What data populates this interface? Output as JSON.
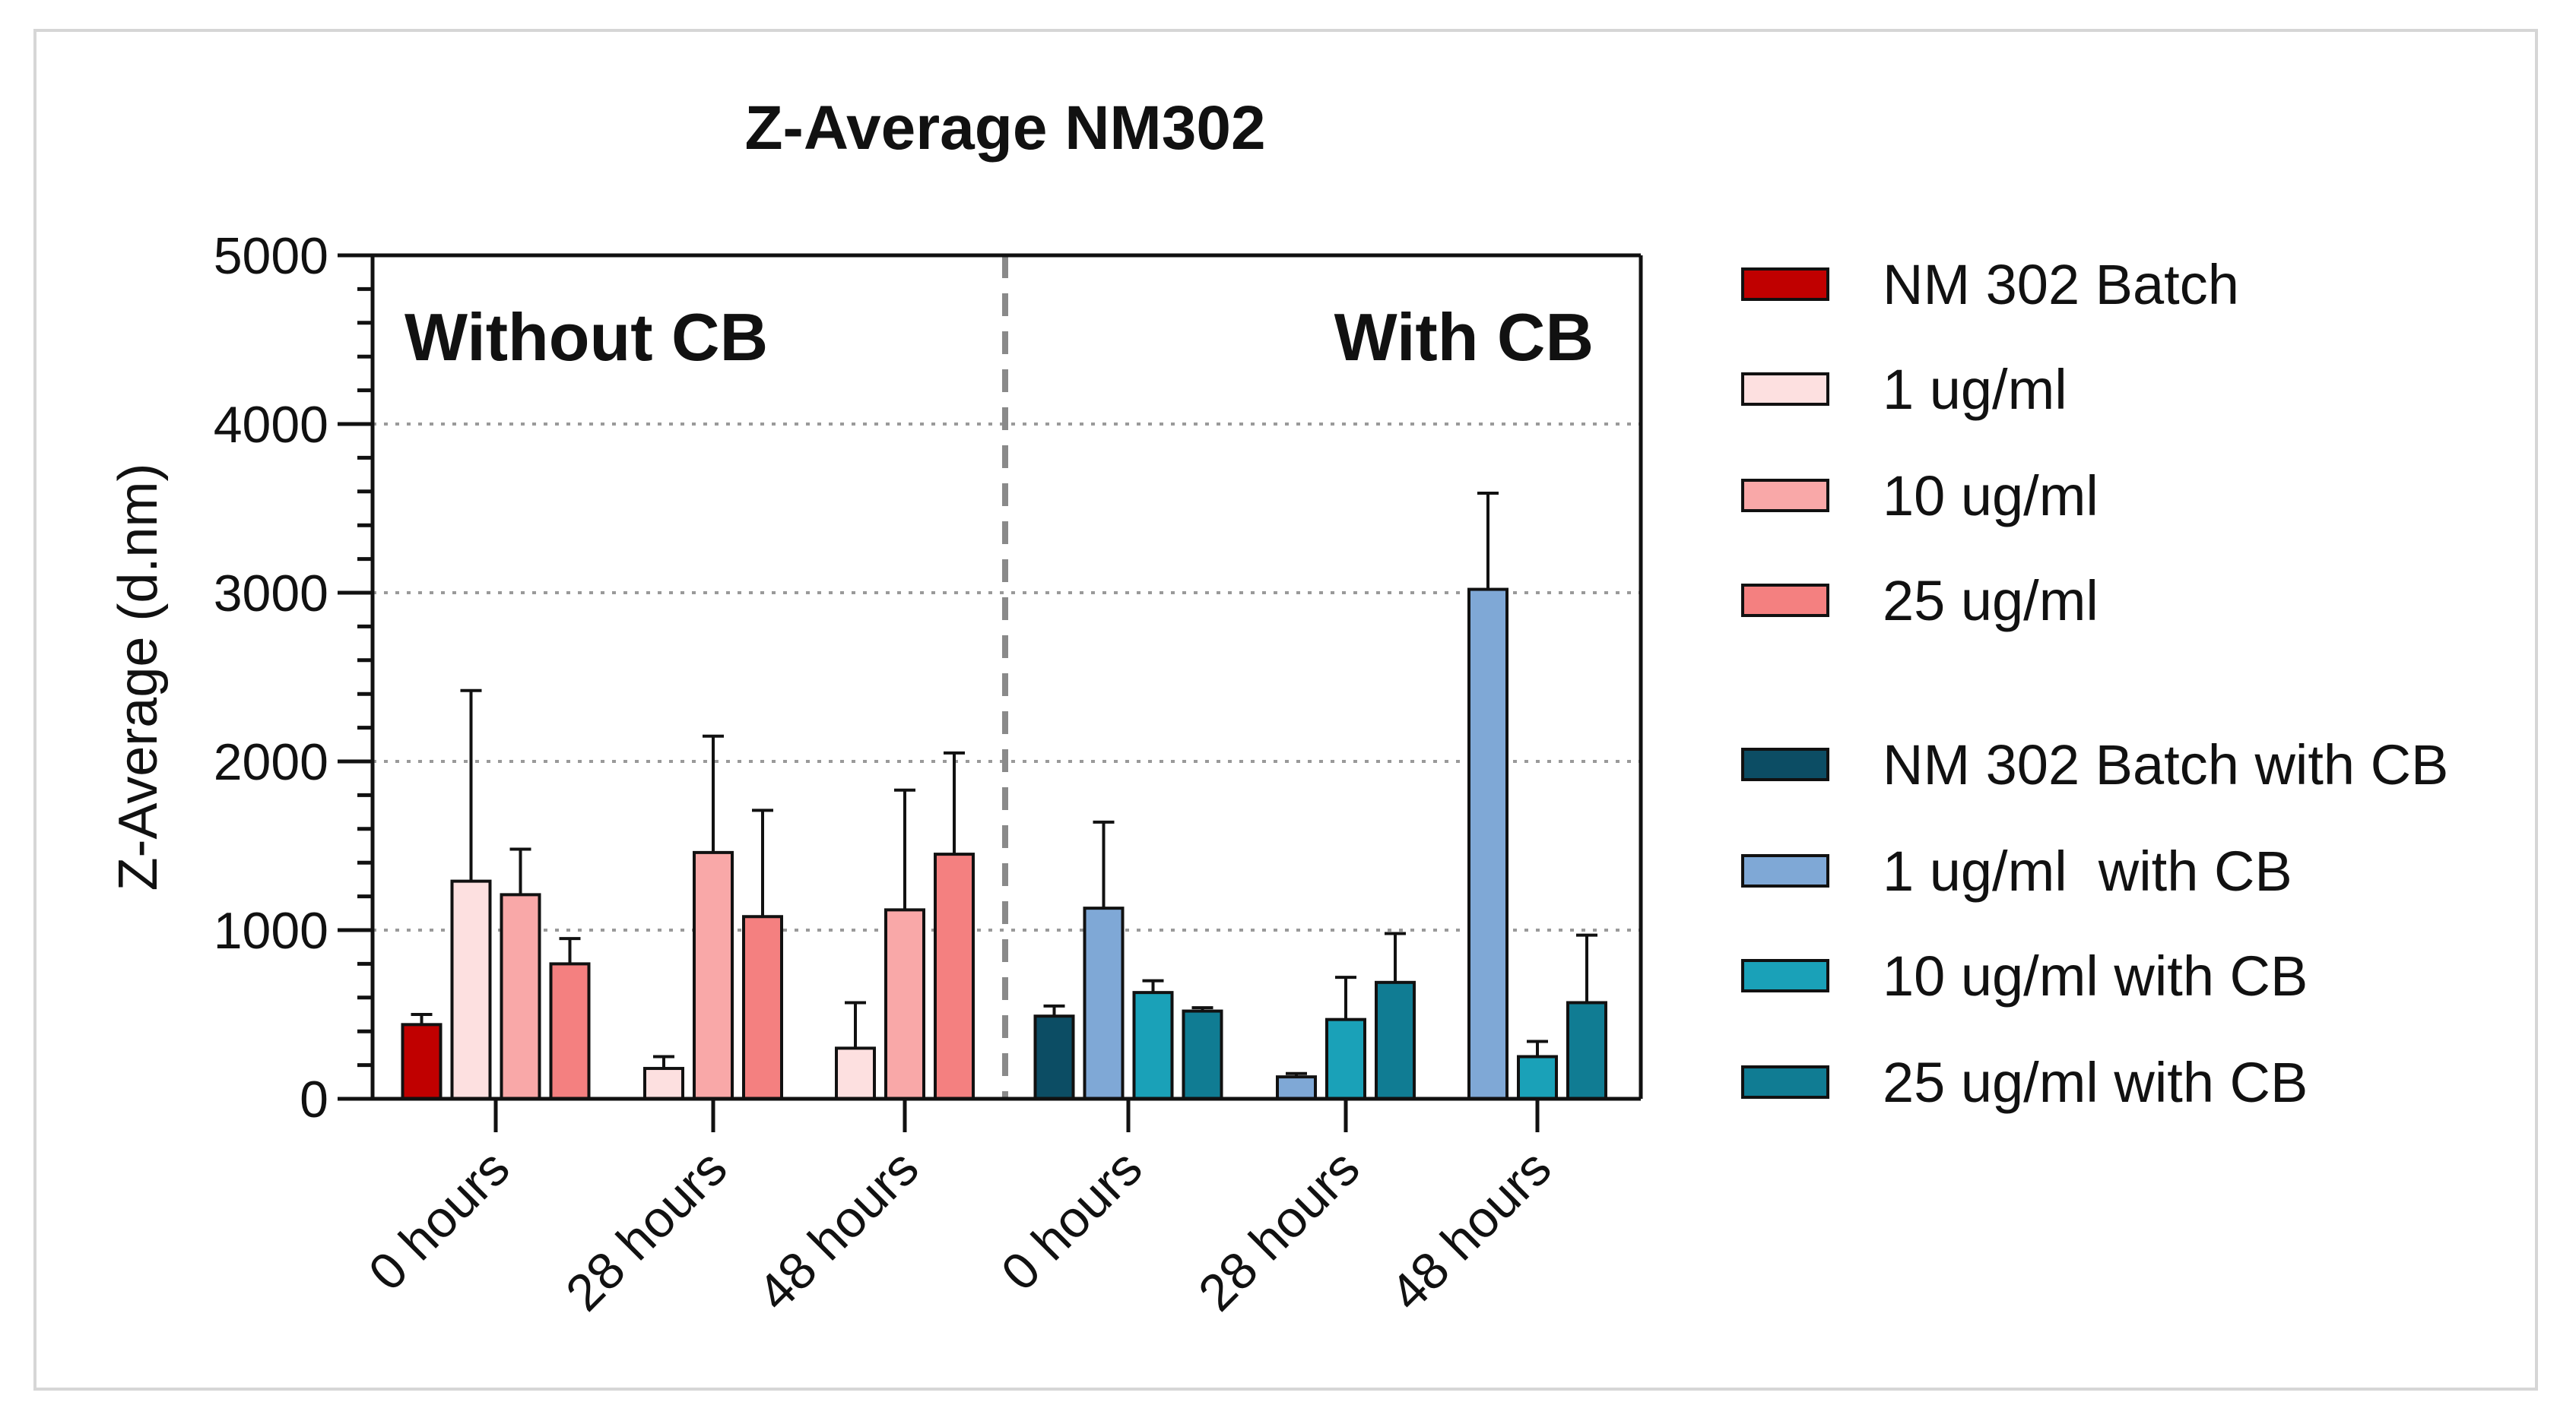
{
  "chart_data": {
    "type": "bar",
    "title": "Z-Average NM302",
    "ylabel": "Z-Average (d.nm)",
    "xlabel": "",
    "ylim": [
      0,
      5000
    ],
    "yticks": [
      0,
      1000,
      2000,
      3000,
      4000,
      5000
    ],
    "grid": "horizontal dotted at 1000, 2000, 3000, 4000",
    "panels": [
      {
        "label": "Without CB",
        "categories": [
          "0 hours",
          "28 hours",
          "48 hours"
        ],
        "series": [
          {
            "name": "NM 302 Batch",
            "color": "#c00000",
            "values": [
              440,
              null,
              null
            ],
            "errors": [
              60,
              null,
              null
            ]
          },
          {
            "name": "1 ug/ml",
            "color": "#fde0e0",
            "values": [
              1290,
              180,
              300
            ],
            "errors": [
              1130,
              70,
              270
            ]
          },
          {
            "name": "10 ug/ml",
            "color": "#f9a8a8",
            "values": [
              1210,
              1460,
              1120
            ],
            "errors": [
              270,
              690,
              710
            ]
          },
          {
            "name": "25 ug/ml",
            "color": "#f48080",
            "values": [
              800,
              1080,
              1450
            ],
            "errors": [
              150,
              630,
              600
            ]
          }
        ]
      },
      {
        "label": "With CB",
        "categories": [
          "0 hours",
          "28 hours",
          "48 hours"
        ],
        "series": [
          {
            "name": "NM 302 Batch with CB",
            "color": "#0c4d64",
            "values": [
              490,
              null,
              null
            ],
            "errors": [
              60,
              null,
              null
            ]
          },
          {
            "name": "1 ug/ml  with CB",
            "color": "#7fa8d6",
            "values": [
              1130,
              130,
              3020
            ],
            "errors": [
              510,
              20,
              570
            ]
          },
          {
            "name": "10 ug/ml with CB",
            "color": "#1aa1b8",
            "values": [
              630,
              470,
              250
            ],
            "errors": [
              70,
              250,
              90
            ]
          },
          {
            "name": "25 ug/ml with CB",
            "color": "#107c93",
            "values": [
              520,
              690,
              570
            ],
            "errors": [
              20,
              290,
              400
            ]
          }
        ]
      }
    ],
    "x_tick_labels": [
      "0 hours",
      "28 hours",
      "48 hours",
      "0 hours",
      "28 hours",
      "48 hours"
    ],
    "legend": {
      "placement": "right",
      "groups": [
        [
          "NM 302 Batch",
          "1 ug/ml",
          "10 ug/ml",
          "25 ug/ml"
        ],
        [
          "NM 302 Batch with CB",
          "1 ug/ml  with CB",
          "10 ug/ml with CB",
          "25 ug/ml with CB"
        ]
      ]
    },
    "divider": "dashed vertical line between Without CB and With CB panels"
  }
}
